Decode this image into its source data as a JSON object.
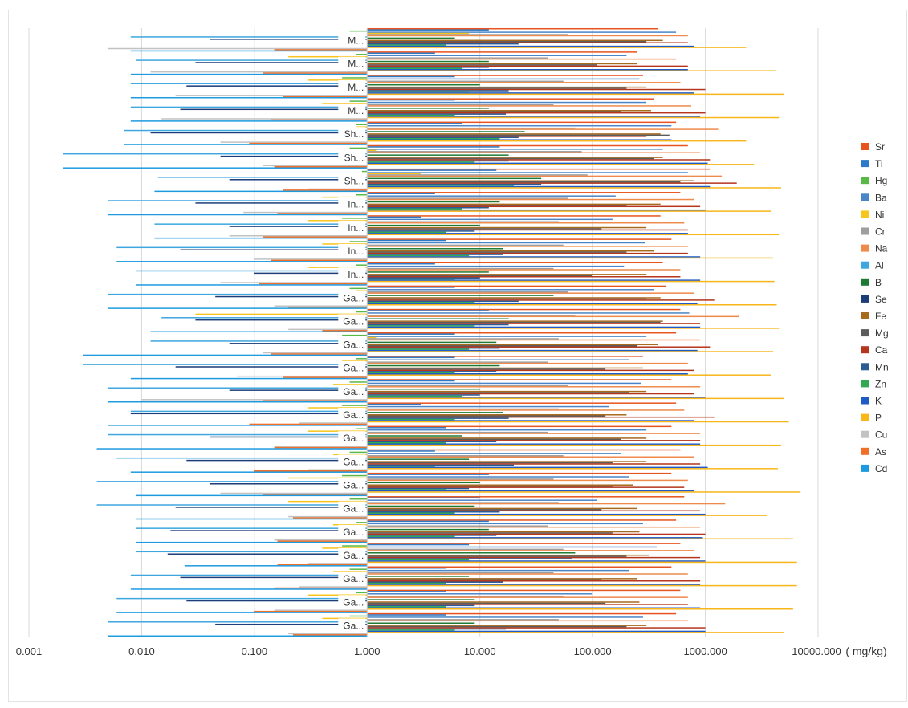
{
  "chart_data": {
    "type": "bar",
    "orientation": "horizontal",
    "title": "",
    "xlabel": "",
    "ylabel": "",
    "x_scale": "log",
    "x_range": [
      0.001,
      10000
    ],
    "x_tick_values": [
      0.001,
      0.01,
      0.1,
      1,
      10,
      100,
      1000,
      10000
    ],
    "x_tick_labels": [
      "0.001",
      "0.010",
      "0.100",
      "1.000",
      "10.000",
      "100.000",
      "1000.000",
      "10000.000"
    ],
    "x_unit_label": "( mg/kg)",
    "base_value": 1,
    "grid": "vertical",
    "legend_position": "right",
    "categories": [
      "M...",
      "M...",
      "M...",
      "M...",
      "Sh...",
      "Sh...",
      "Sh...",
      "In...",
      "In...",
      "In...",
      "In...",
      "Ga...",
      "Ga...",
      "Ga...",
      "Ga...",
      "Ga...",
      "Ga...",
      "Ga...",
      "Ga...",
      "Ga...",
      "Ga...",
      "Ga...",
      "Ga...",
      "Ga...",
      "Ga...",
      "Ga..."
    ],
    "series": [
      {
        "name": "Sr",
        "color": "#E8541F",
        "values": [
          380,
          250,
          280,
          350,
          550,
          700,
          1100,
          600,
          400,
          500,
          420,
          450,
          600,
          550,
          280,
          500,
          550,
          500,
          600,
          500,
          650,
          550,
          600,
          500,
          600,
          550
        ]
      },
      {
        "name": "Ti",
        "color": "#2F7AC6",
        "values": [
          12,
          4,
          6,
          6,
          7,
          15,
          14,
          4,
          3,
          5,
          4,
          6,
          12,
          6,
          6,
          6,
          3,
          5,
          4,
          12,
          10,
          12,
          8,
          5,
          5,
          5
        ]
      },
      {
        "name": "Hg",
        "color": "#58B947",
        "values": [
          0.7,
          0.8,
          0.6,
          0.7,
          0.8,
          0.7,
          0.9,
          0.8,
          0.6,
          0.7,
          0.8,
          0.7,
          0.8,
          0.6,
          0.8,
          0.7,
          0.6,
          0.8,
          0.7,
          0.6,
          0.7,
          0.8,
          0.6,
          0.7,
          0.8,
          0.7
        ]
      },
      {
        "name": "Ba",
        "color": "#4A85C8",
        "values": [
          550,
          200,
          260,
          300,
          500,
          420,
          700,
          160,
          150,
          290,
          190,
          350,
          720,
          300,
          210,
          270,
          140,
          300,
          180,
          210,
          110,
          280,
          370,
          210,
          100,
          280
        ]
      },
      {
        "name": "Ni",
        "color": "#F8C51C",
        "values": [
          8,
          0.2,
          0.3,
          0.4,
          0.8,
          1.2,
          3,
          0.4,
          0.3,
          0.4,
          0.3,
          0.8,
          0.03,
          1.2,
          0.6,
          0.5,
          0.3,
          0.3,
          0.5,
          0.2,
          0.2,
          0.5,
          0.4,
          0.5,
          0.3,
          0.4
        ]
      },
      {
        "name": "Cr",
        "color": "#9E9E9E",
        "values": [
          60,
          40,
          55,
          45,
          70,
          80,
          90,
          60,
          50,
          55,
          45,
          60,
          70,
          50,
          40,
          60,
          50,
          40,
          55,
          45,
          50,
          40,
          55,
          45,
          55,
          50
        ]
      },
      {
        "name": "Na",
        "color": "#F08A4B",
        "values": [
          700,
          550,
          600,
          750,
          1300,
          900,
          1400,
          800,
          650,
          700,
          600,
          800,
          2000,
          900,
          700,
          900,
          650,
          900,
          800,
          700,
          1500,
          900,
          800,
          700,
          700,
          700
        ]
      },
      {
        "name": "Al",
        "color": "#3EA7DF",
        "values": [
          0.008,
          0.009,
          0.008,
          0.008,
          0.007,
          0.002,
          0.014,
          0.005,
          0.013,
          0.006,
          0.009,
          0.005,
          0.015,
          0.012,
          0.003,
          0.005,
          0.008,
          0.005,
          0.006,
          0.004,
          0.004,
          0.009,
          0.009,
          0.008,
          0.006,
          0.005
        ]
      },
      {
        "name": "B",
        "color": "#1E7B34",
        "values": [
          6,
          12,
          10,
          12,
          25,
          18,
          35,
          15,
          10,
          16,
          12,
          45,
          18,
          14,
          15,
          10,
          16,
          7,
          8,
          10,
          9,
          12,
          70,
          8,
          9,
          9
        ]
      },
      {
        "name": "Se",
        "color": "#1C3D7A",
        "values": [
          0.04,
          0.03,
          0.025,
          0.022,
          0.012,
          0.05,
          0.06,
          0.03,
          0.06,
          0.022,
          0.1,
          0.045,
          0.03,
          0.06,
          0.02,
          0.06,
          0.008,
          0.04,
          0.025,
          0.04,
          0.02,
          0.018,
          0.017,
          0.022,
          0.025,
          0.045
        ]
      },
      {
        "name": "Fe",
        "color": "#A86A1C",
        "values": [
          420,
          250,
          300,
          330,
          400,
          420,
          800,
          400,
          300,
          350,
          300,
          400,
          420,
          380,
          280,
          300,
          200,
          300,
          300,
          230,
          250,
          260,
          320,
          250,
          260,
          300
        ]
      },
      {
        "name": "Mg",
        "color": "#5C5C5C",
        "values": [
          300,
          110,
          200,
          180,
          480,
          350,
          600,
          200,
          120,
          200,
          100,
          300,
          400,
          250,
          130,
          210,
          130,
          180,
          150,
          150,
          120,
          150,
          200,
          120,
          130,
          200
        ]
      },
      {
        "name": "Ca",
        "color": "#B5361C",
        "values": [
          700,
          700,
          1000,
          1000,
          300,
          1100,
          1900,
          900,
          700,
          700,
          600,
          1200,
          900,
          1100,
          800,
          800,
          1200,
          900,
          900,
          650,
          900,
          1000,
          900,
          900,
          700,
          1000
        ]
      },
      {
        "name": "Mn",
        "color": "#2A5B93",
        "values": [
          22,
          12,
          18,
          17,
          22,
          18,
          35,
          12,
          9,
          16,
          10,
          22,
          18,
          15,
          14,
          10,
          18,
          14,
          20,
          8,
          15,
          14,
          65,
          16,
          9,
          17
        ]
      },
      {
        "name": "Zn",
        "color": "#32A852",
        "values": [
          5,
          7,
          8,
          6,
          15,
          9,
          20,
          7,
          5,
          8,
          6,
          9,
          9,
          8,
          6,
          7,
          6,
          5,
          4,
          5,
          6,
          6,
          8,
          5,
          5,
          6
        ]
      },
      {
        "name": "K",
        "color": "#1E5AC8",
        "values": [
          800,
          700,
          800,
          900,
          500,
          1050,
          1100,
          1000,
          700,
          900,
          900,
          850,
          900,
          850,
          700,
          1000,
          800,
          900,
          1050,
          800,
          1000,
          950,
          1000,
          900,
          900,
          1000
        ]
      },
      {
        "name": "P",
        "color": "#F7B61A",
        "values": [
          2300,
          4200,
          5000,
          4500,
          2300,
          2700,
          4700,
          3800,
          4500,
          4000,
          4100,
          4300,
          4500,
          4000,
          3800,
          5000,
          5500,
          4700,
          4400,
          7000,
          3500,
          6000,
          6500,
          6500,
          6000,
          5000
        ]
      },
      {
        "name": "Cu",
        "color": "#C2C2C2",
        "values": [
          0.005,
          0.012,
          0.02,
          0.015,
          0.05,
          0.12,
          0.3,
          0.08,
          0.06,
          0.1,
          0.05,
          0.15,
          0.2,
          0.12,
          0.07,
          0.01,
          0.25,
          0.15,
          0.3,
          0.05,
          0.2,
          0.15,
          0.3,
          0.25,
          0.15,
          0.2
        ]
      },
      {
        "name": "As",
        "color": "#F0702A",
        "values": [
          0.15,
          0.12,
          0.18,
          0.14,
          0.09,
          0.15,
          0.18,
          0.16,
          0.12,
          0.14,
          0.11,
          0.2,
          0.4,
          0.14,
          0.18,
          0.12,
          0.09,
          0.15,
          0.1,
          0.12,
          0.22,
          0.16,
          0.16,
          0.15,
          0.1,
          0.22
        ]
      },
      {
        "name": "Cd",
        "color": "#1E9BE0",
        "values": [
          0.008,
          0.008,
          0.008,
          0.008,
          0.007,
          0.002,
          0.013,
          0.005,
          0.013,
          0.006,
          0.009,
          0.005,
          0.012,
          0.003,
          0.008,
          0.005,
          0.005,
          0.004,
          0.008,
          0.009,
          0.009,
          0.009,
          0.024,
          0.008,
          0.006,
          0.005
        ]
      }
    ]
  }
}
